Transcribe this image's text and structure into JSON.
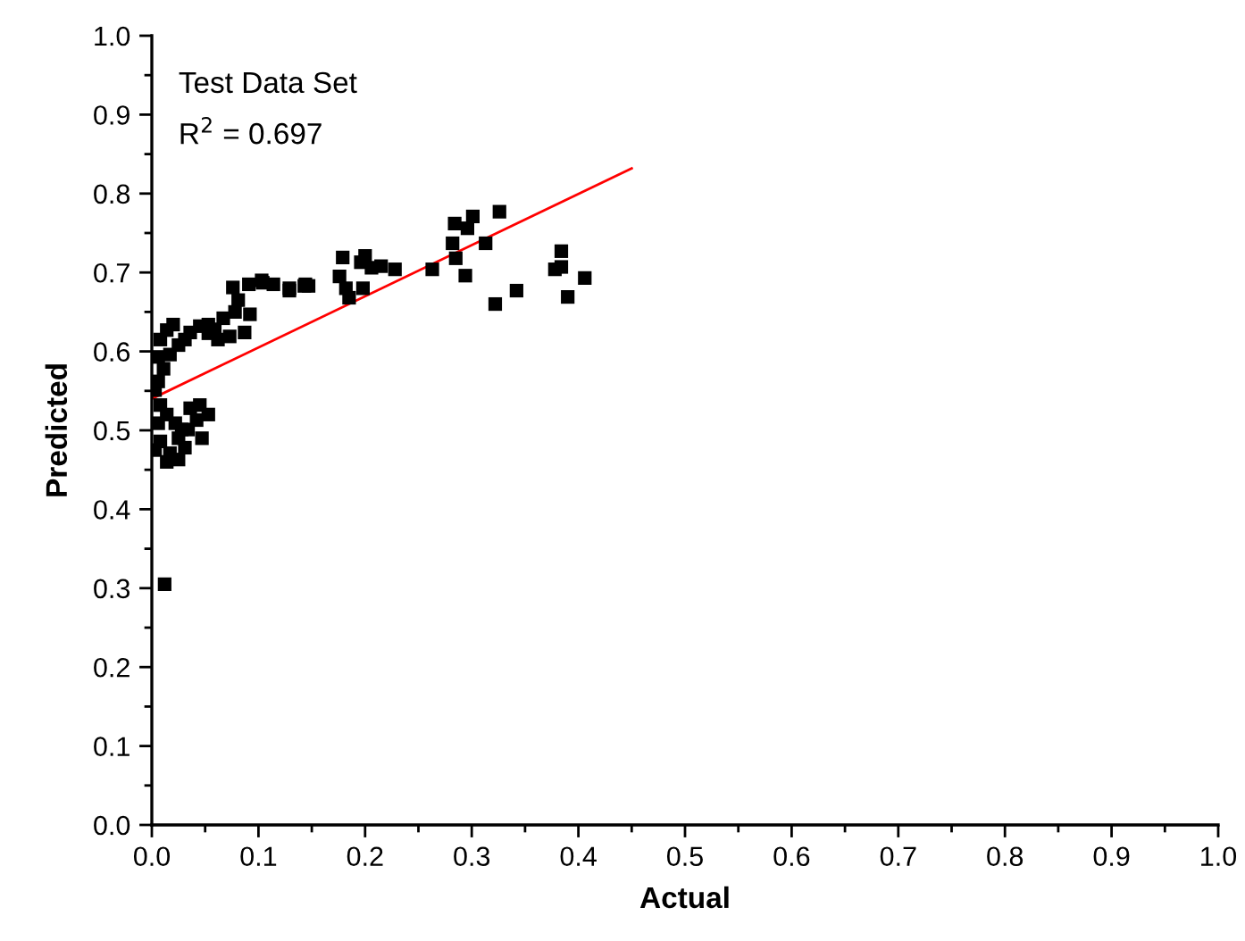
{
  "chart_data": {
    "type": "scatter",
    "xlabel": "Actual",
    "ylabel": "Predicted",
    "annotations": [
      "Test Data Set",
      "R$^{2}$ = 0.697"
    ],
    "xlim": [
      0,
      1.0
    ],
    "ylim": [
      0,
      1.0
    ],
    "xticks": [
      {
        "value": 0,
        "label": "0.0"
      },
      0.1,
      0.2,
      0.3,
      0.4,
      0.5,
      0.6,
      0.7,
      0.8,
      0.9,
      {
        "value": 1.0,
        "label": "1.0"
      }
    ],
    "yticks": [
      {
        "value": 0,
        "label": "0.0"
      },
      0.1,
      0.2,
      0.3,
      0.4,
      0.5,
      0.6,
      0.7,
      0.8,
      0.9,
      {
        "value": 1.0,
        "label": "1.0"
      }
    ],
    "grid": false,
    "legend": false,
    "marker": "square",
    "series": [
      {
        "color": "#000000",
        "x": [
          0.012,
          0.147,
          0.179,
          0.176,
          0.182,
          0.185,
          0.198,
          0.2,
          0.196,
          0.206,
          0.215,
          0.228,
          0.263,
          0.284,
          0.301,
          0.296,
          0.282,
          0.285,
          0.294,
          0.313,
          0.326,
          0.322,
          0.342,
          0.384,
          0.378,
          0.384,
          0.39,
          0.406,
          0.104,
          0.114,
          0.129,
          0.144,
          0.143,
          0.129,
          0.103,
          0.091,
          0.076,
          0.081,
          0.078,
          0.092,
          0.067,
          0.087,
          0.062,
          0.073,
          0.053,
          0.045,
          0.036,
          0.031,
          0.02,
          0.014,
          0.008,
          0.025,
          0.017,
          0.006,
          0.011,
          0.006,
          0.003,
          0.059,
          0.053,
          0.008,
          0.014,
          0.006,
          0.022,
          0.036,
          0.045,
          0.053,
          0.042,
          0.034,
          0.047,
          0.025,
          0.008,
          0.003,
          0.017,
          0.025,
          0.031,
          0.014,
          0.028
        ],
        "values": [
          0.305,
          0.683,
          0.719,
          0.695,
          0.68,
          0.668,
          0.68,
          0.721,
          0.713,
          0.706,
          0.708,
          0.704,
          0.704,
          0.762,
          0.771,
          0.756,
          0.737,
          0.718,
          0.696,
          0.737,
          0.777,
          0.66,
          0.677,
          0.727,
          0.704,
          0.707,
          0.669,
          0.693,
          0.687,
          0.685,
          0.68,
          0.685,
          0.683,
          0.677,
          0.69,
          0.685,
          0.681,
          0.665,
          0.65,
          0.647,
          0.642,
          0.624,
          0.615,
          0.619,
          0.634,
          0.632,
          0.624,
          0.615,
          0.634,
          0.627,
          0.615,
          0.608,
          0.596,
          0.593,
          0.578,
          0.562,
          0.551,
          0.628,
          0.623,
          0.532,
          0.52,
          0.509,
          0.509,
          0.528,
          0.532,
          0.52,
          0.513,
          0.501,
          0.49,
          0.49,
          0.486,
          0.475,
          0.471,
          0.463,
          0.478,
          0.46,
          0.501
        ]
      },
      {
        "type": "line",
        "color": "#ff0000",
        "marker": "none",
        "line_style": "solid",
        "x": [
          0,
          0.45
        ],
        "values": [
          0.54,
          0.832
        ]
      }
    ]
  }
}
